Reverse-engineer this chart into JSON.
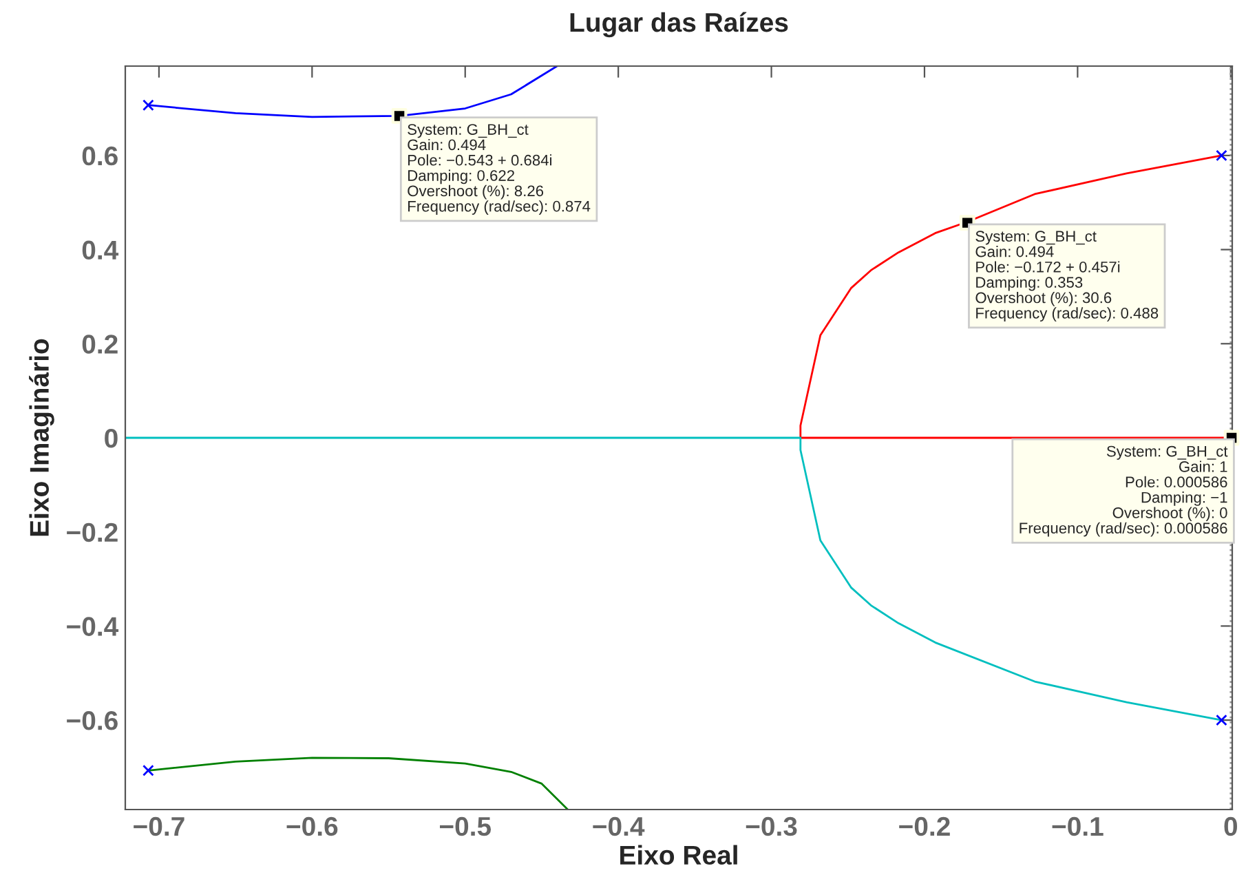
{
  "chart_data": {
    "type": "line",
    "title": "Lugar das Raízes",
    "xlabel": "Eixo Real",
    "ylabel": "Eixo Imaginário",
    "xlim": [
      -0.722,
      0.001
    ],
    "ylim": [
      -0.79,
      0.79
    ],
    "xticks": [
      -0.7,
      -0.6,
      -0.5,
      -0.4,
      -0.3,
      -0.2,
      -0.1,
      0
    ],
    "yticks": [
      -0.6,
      -0.4,
      -0.2,
      0,
      0.2,
      0.4,
      0.6
    ],
    "grid": false,
    "legend": false,
    "series": [
      {
        "color": "#0000ff",
        "x": [
          -0.707,
          -0.65,
          -0.6,
          -0.543,
          -0.5,
          -0.47,
          -0.44
        ],
        "values": [
          0.707,
          0.69,
          0.682,
          0.684,
          0.7,
          0.73,
          0.79
        ]
      },
      {
        "color": "#008000",
        "x": [
          -0.707,
          -0.65,
          -0.6,
          -0.55,
          -0.5,
          -0.47,
          -0.45,
          -0.433
        ],
        "values": [
          -0.707,
          -0.688,
          -0.68,
          -0.681,
          -0.692,
          -0.71,
          -0.735,
          -0.79
        ]
      },
      {
        "color": "#ff0000",
        "x": [
          0.000586,
          -0.281,
          -0.281,
          -0.268,
          -0.248,
          -0.235,
          -0.217,
          -0.193,
          -0.172,
          -0.128,
          -0.068,
          -0.006
        ],
        "values": [
          0,
          0,
          0.026,
          0.218,
          0.318,
          0.356,
          0.394,
          0.435,
          0.459,
          0.518,
          0.562,
          0.6
        ]
      },
      {
        "color": "#00bfbf",
        "x": [
          -0.722,
          -0.281,
          -0.281,
          -0.268,
          -0.248,
          -0.235,
          -0.217,
          -0.193,
          -0.128,
          -0.068,
          -0.006
        ],
        "values": [
          0,
          0,
          -0.026,
          -0.218,
          -0.318,
          -0.356,
          -0.394,
          -0.435,
          -0.518,
          -0.562,
          -0.6
        ]
      },
      {
        "type": "scatter",
        "marker": "cross",
        "color": "#0000ff",
        "x": [
          -0.707,
          -0.707,
          -0.006,
          -0.006
        ],
        "values": [
          0.707,
          -0.707,
          0.6,
          -0.6
        ]
      },
      {
        "type": "scatter",
        "marker": "square",
        "color": "#000000",
        "x": [
          -0.543,
          -0.172,
          0.000586
        ],
        "values": [
          0.684,
          0.457,
          0
        ]
      }
    ],
    "ref_lines": [
      {
        "axis": "x",
        "value": 0,
        "color": "#999999",
        "line_style": "dotted"
      }
    ],
    "annotations": [
      {
        "text": "System: G_BH_ct\nGain: 0.494\nPole: −0.543 + 0.684i\nDamping: 0.622\nOvershoot (%): 8.26\nFrequency (rad/sec): 0.874",
        "x": -0.543,
        "y": 0.684
      },
      {
        "text": "System: G_BH_ct\nGain: 0.494\nPole: −0.172 + 0.457i\nDamping: 0.353\nOvershoot (%): 30.6\nFrequency (rad/sec): 0.488",
        "x": -0.172,
        "y": 0.457
      },
      {
        "text": "System: G_BH_ct\nGain: 1\nPole: 0.000586\nDamping: −1\nOvershoot (%): 0\nFrequency (rad/sec): 0.000586",
        "x": 0.000586,
        "y": 0
      }
    ]
  }
}
